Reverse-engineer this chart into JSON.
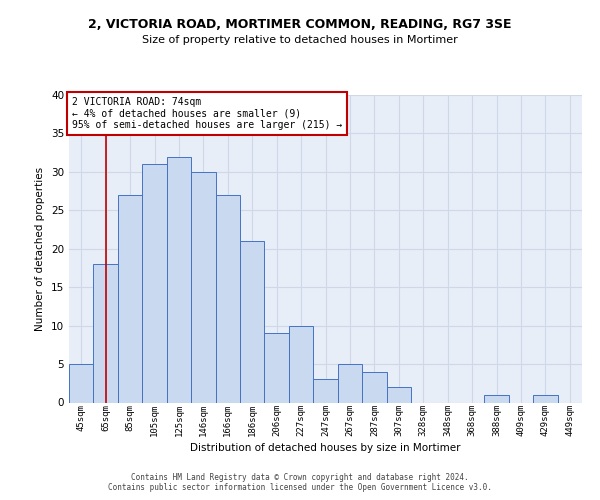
{
  "title1": "2, VICTORIA ROAD, MORTIMER COMMON, READING, RG7 3SE",
  "title2": "Size of property relative to detached houses in Mortimer",
  "xlabel": "Distribution of detached houses by size in Mortimer",
  "ylabel": "Number of detached properties",
  "bin_labels": [
    "45sqm",
    "65sqm",
    "85sqm",
    "105sqm",
    "125sqm",
    "146sqm",
    "166sqm",
    "186sqm",
    "206sqm",
    "227sqm",
    "247sqm",
    "267sqm",
    "287sqm",
    "307sqm",
    "328sqm",
    "348sqm",
    "368sqm",
    "388sqm",
    "409sqm",
    "429sqm",
    "449sqm"
  ],
  "bar_values": [
    5,
    18,
    27,
    31,
    32,
    30,
    27,
    21,
    9,
    10,
    3,
    5,
    4,
    2,
    0,
    0,
    0,
    1,
    0,
    1,
    0
  ],
  "bar_color": "#c9d9f0",
  "bar_edge_color": "#4472c4",
  "vline_x": 1,
  "vline_color": "#c00000",
  "annotation_lines": [
    "2 VICTORIA ROAD: 74sqm",
    "← 4% of detached houses are smaller (9)",
    "95% of semi-detached houses are larger (215) →"
  ],
  "annotation_box_color": "#ffffff",
  "annotation_box_edge": "#c00000",
  "ylim": [
    0,
    40
  ],
  "yticks": [
    0,
    5,
    10,
    15,
    20,
    25,
    30,
    35,
    40
  ],
  "grid_color": "#d0d8e8",
  "footer1": "Contains HM Land Registry data © Crown copyright and database right 2024.",
  "footer2": "Contains public sector information licensed under the Open Government Licence v3.0.",
  "bg_color": "#e8eef8"
}
